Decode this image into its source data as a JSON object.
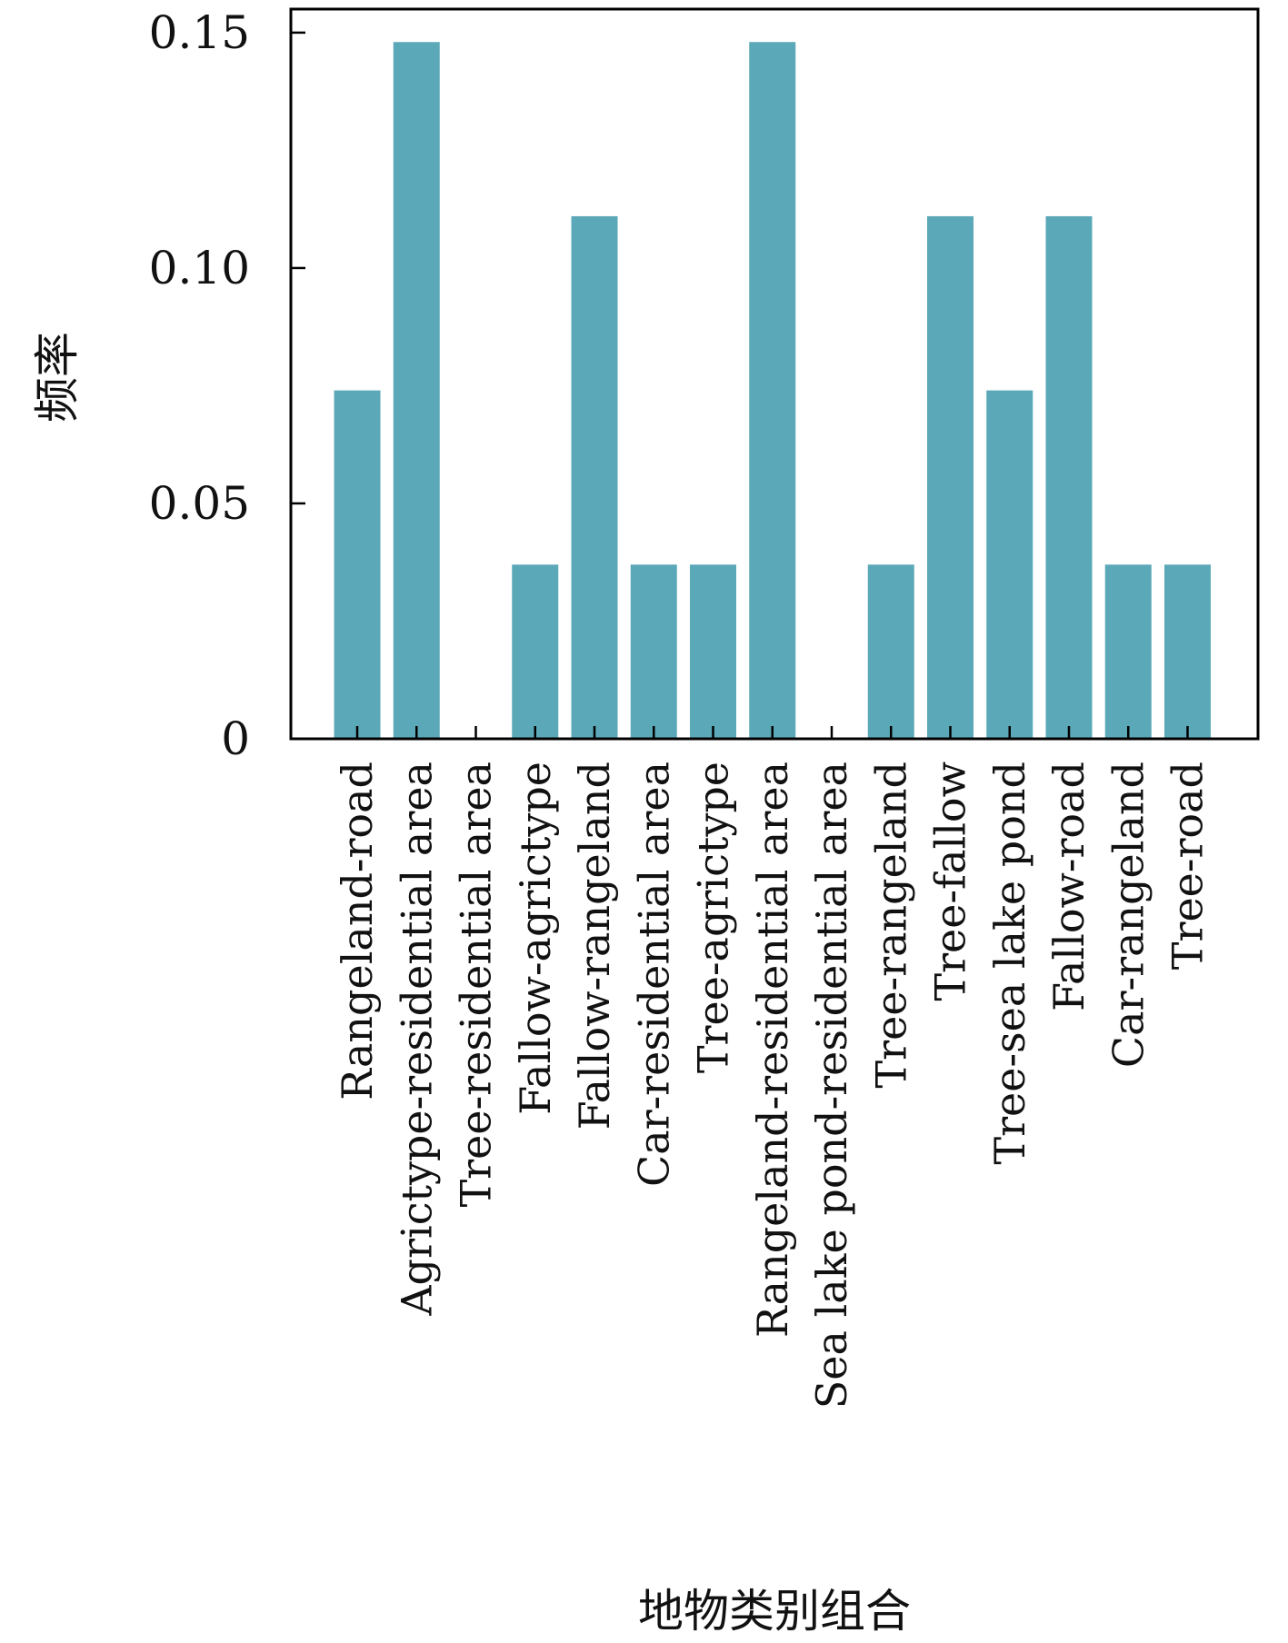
{
  "chart_data": {
    "type": "bar",
    "xlabel": "地物类别组合",
    "ylabel": "频率",
    "ylim": [
      0,
      0.155
    ],
    "yticks": [
      0,
      0.05,
      0.1,
      0.15
    ],
    "ytick_labels": [
      "0",
      "0.05",
      "0.10",
      "0.15"
    ],
    "bar_color": "#5ba8b8",
    "categories": [
      "Rangeland-road",
      "Agrictype-residential area",
      "Tree-residential area",
      "Fallow-agrictype",
      "Fallow-rangeland",
      "Car-residential area",
      "Tree-agrictype",
      "Rangeland-residential area",
      "Sea lake pond-residential area",
      "Tree-rangeland",
      "Tree-fallow",
      "Tree-sea lake pond",
      "Fallow-road",
      "Car-rangeland",
      "Tree-road"
    ],
    "values": [
      0.074,
      0.148,
      0,
      0.037,
      0.111,
      0.037,
      0.037,
      0.148,
      0,
      0.037,
      0.111,
      0.074,
      0.111,
      0.037,
      0.037
    ],
    "grid": false,
    "legend": "none"
  }
}
